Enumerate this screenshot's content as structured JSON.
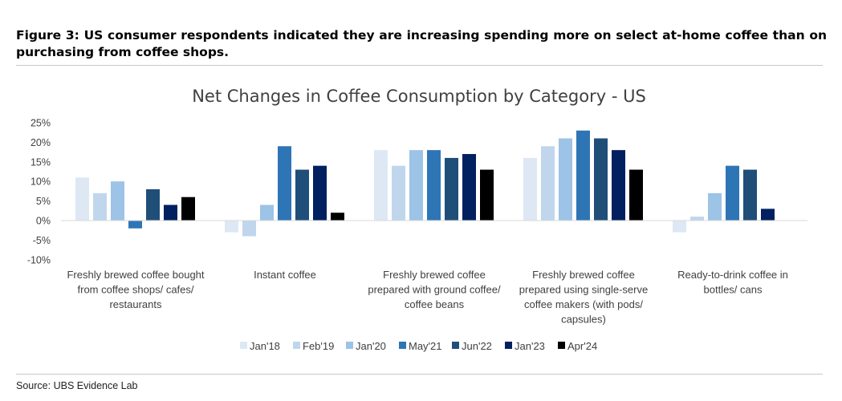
{
  "figure": {
    "title": "Figure 3: US consumer respondents indicated they are increasing spending more on select at-home coffee than on purchasing from coffee shops.",
    "source_label": "Source:",
    "source_value": "UBS Evidence Lab"
  },
  "chart_data": {
    "type": "bar",
    "title": "Net Changes in Coffee Consumption by Category - US",
    "xlabel": "",
    "ylabel": "",
    "ylim": [
      -10,
      25
    ],
    "y_ticks": [
      -10,
      -5,
      0,
      5,
      10,
      15,
      20,
      25
    ],
    "y_tick_labels": [
      "-10%",
      "-5%",
      "0%",
      "5%",
      "10%",
      "15%",
      "20%",
      "25%"
    ],
    "grid": false,
    "legend_position": "bottom",
    "categories": [
      [
        "Freshly brewed coffee bought",
        "from coffee shops/ cafes/",
        "restaurants"
      ],
      [
        "Instant coffee"
      ],
      [
        "Freshly brewed coffee",
        "prepared with ground coffee/",
        "coffee beans"
      ],
      [
        "Freshly brewed coffee",
        "prepared using single-serve",
        "coffee makers (with pods/",
        "capsules)"
      ],
      [
        "Ready-to-drink coffee in",
        "bottles/ cans"
      ]
    ],
    "series": [
      {
        "name": "Jan'18",
        "color": "#dde8f4",
        "values": [
          11,
          -3,
          18,
          16,
          -3
        ]
      },
      {
        "name": "Feb'19",
        "color": "#c0d6ec",
        "values": [
          7,
          -4,
          14,
          19,
          1
        ]
      },
      {
        "name": "Jan'20",
        "color": "#9dc3e6",
        "values": [
          10,
          4,
          18,
          21,
          7
        ]
      },
      {
        "name": "May'21",
        "color": "#2e75b6",
        "values": [
          -2,
          19,
          18,
          23,
          14
        ]
      },
      {
        "name": "Jun'22",
        "color": "#1f4e79",
        "values": [
          8,
          13,
          16,
          21,
          13
        ]
      },
      {
        "name": "Jan'23",
        "color": "#002060",
        "values": [
          4,
          14,
          17,
          18,
          3
        ]
      },
      {
        "name": "Apr'24",
        "color": "#000000",
        "values": [
          6,
          2,
          13,
          13,
          null
        ]
      }
    ]
  }
}
